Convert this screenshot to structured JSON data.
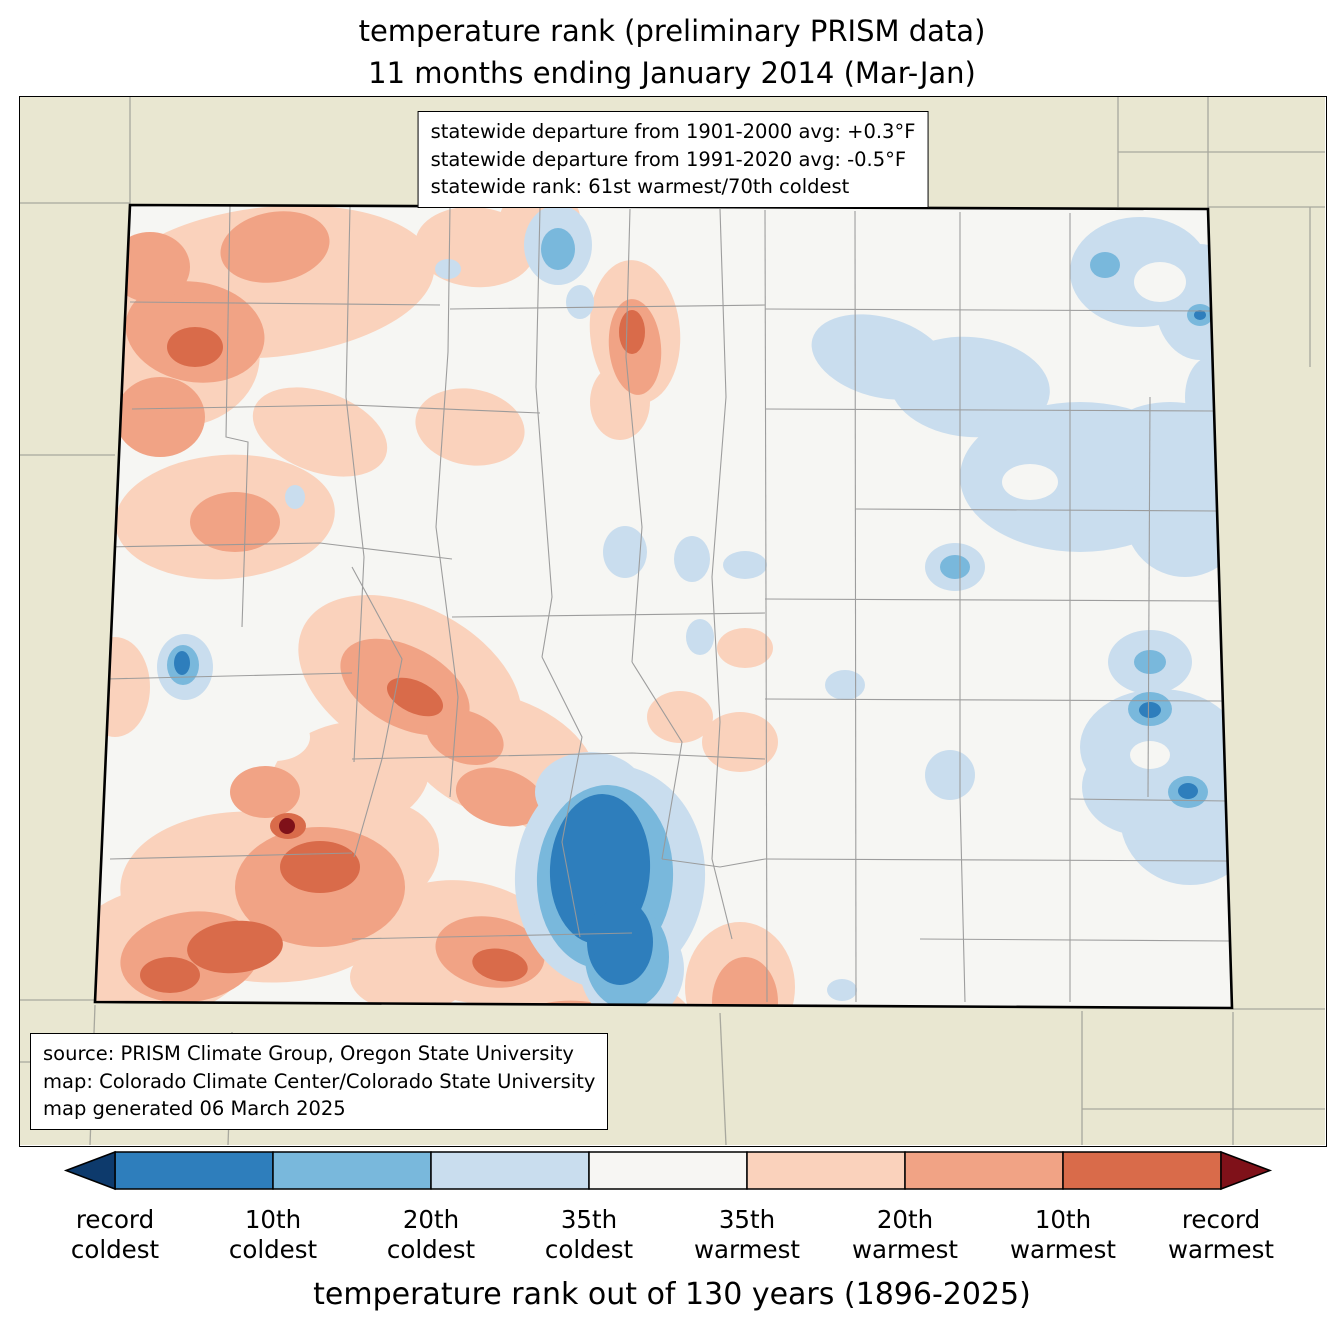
{
  "title": {
    "line1": "temperature rank (preliminary PRISM data)",
    "line2": "11 months ending January 2014 (Mar-Jan)"
  },
  "stats_box": {
    "lines": [
      "statewide departure from 1901-2000 avg: +0.3°F",
      "statewide departure from 1991-2020 avg: -0.5°F",
      "statewide rank: 61st warmest/70th coldest"
    ]
  },
  "source_box": {
    "lines": [
      "source: PRISM Climate Group, Oregon State University",
      "map: Colorado Climate Center/Colorado State University",
      "map generated 06 March 2025"
    ]
  },
  "colorbar": {
    "arrow_left_color": "#0d3a6c",
    "arrow_right_color": "#7f1119",
    "segment_colors": [
      "#2e7ebc",
      "#79b8dc",
      "#c9ddee",
      "#f7f6f3",
      "#fad2bc",
      "#f1a385",
      "#d96b4a"
    ],
    "labels": [
      "record\ncoldest",
      "10th\ncoldest",
      "20th\ncoldest",
      "35th\ncoldest",
      "35th\nwarmest",
      "20th\nwarmest",
      "10th\nwarmest",
      "record\nwarmest"
    ]
  },
  "footer": {
    "text": "temperature rank out of 130 years (1896-2025)"
  },
  "map": {
    "region": "Colorado",
    "palette": {
      "beige": "#e9e7d1",
      "state_fill": "#f6f6f3",
      "county_line": "#999999",
      "neighbor_line": "#a8a89e",
      "state_border": "#000000",
      "blue_strong": "#2e7ebc",
      "blue_mid": "#79b8dc",
      "blue_light": "#c9ddee",
      "salmon_light": "#fad2bc",
      "salmon_mid": "#f1a385",
      "salmon_deep": "#d96b4a",
      "record_warm": "#7f1119"
    }
  }
}
